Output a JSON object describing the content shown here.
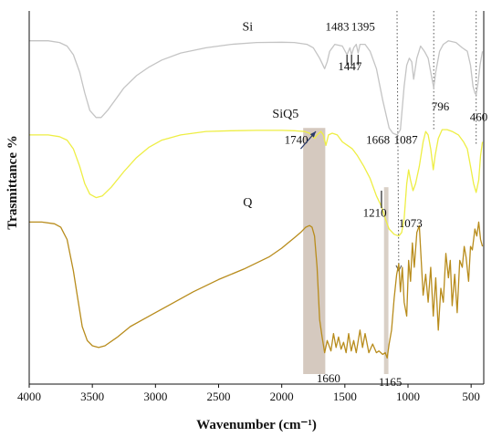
{
  "chart_data": {
    "type": "line",
    "xlabel": "Wavenumber (cm⁻¹)",
    "ylabel": "Trasmittance %",
    "xlim": [
      4000,
      400
    ],
    "x_reversed": true,
    "y_ticks_shown": false,
    "x_ticks": [
      "4000",
      "3500",
      "3000",
      "2500",
      "2000",
      "1500",
      "1000",
      "500"
    ],
    "x_tick_values": [
      4000,
      3500,
      3000,
      2500,
      2000,
      1500,
      1000,
      500
    ],
    "ylim": [
      0,
      100
    ],
    "grid": false,
    "series": [
      {
        "name": "Si",
        "color": "#c4c4c4",
        "label_at": [
          2270,
          96
        ],
        "points": [
          [
            4000,
            93
          ],
          [
            3850,
            93
          ],
          [
            3760,
            92.5
          ],
          [
            3700,
            91.5
          ],
          [
            3650,
            89
          ],
          [
            3600,
            84
          ],
          [
            3560,
            78
          ],
          [
            3520,
            73
          ],
          [
            3470,
            71
          ],
          [
            3430,
            71
          ],
          [
            3380,
            73
          ],
          [
            3320,
            76
          ],
          [
            3250,
            79.5
          ],
          [
            3150,
            83
          ],
          [
            3050,
            85.5
          ],
          [
            2950,
            87.5
          ],
          [
            2800,
            89.5
          ],
          [
            2600,
            91
          ],
          [
            2400,
            92
          ],
          [
            2200,
            92.5
          ],
          [
            2000,
            92.6
          ],
          [
            1900,
            92.5
          ],
          [
            1800,
            92
          ],
          [
            1750,
            91
          ],
          [
            1700,
            88
          ],
          [
            1660,
            85
          ],
          [
            1640,
            87
          ],
          [
            1620,
            90
          ],
          [
            1580,
            92
          ],
          [
            1520,
            91.5
          ],
          [
            1483,
            89
          ],
          [
            1460,
            91
          ],
          [
            1447,
            89
          ],
          [
            1430,
            91
          ],
          [
            1410,
            92
          ],
          [
            1395,
            89.5
          ],
          [
            1380,
            92
          ],
          [
            1340,
            92
          ],
          [
            1300,
            90
          ],
          [
            1250,
            85
          ],
          [
            1200,
            76
          ],
          [
            1150,
            68
          ],
          [
            1120,
            66.5
          ],
          [
            1087,
            66
          ],
          [
            1060,
            67.5
          ],
          [
            1030,
            80
          ],
          [
            1010,
            86
          ],
          [
            990,
            88
          ],
          [
            970,
            87
          ],
          [
            955,
            82
          ],
          [
            930,
            88
          ],
          [
            900,
            91.5
          ],
          [
            870,
            90
          ],
          [
            840,
            88
          ],
          [
            815,
            83
          ],
          [
            796,
            79.5
          ],
          [
            780,
            84
          ],
          [
            750,
            90
          ],
          [
            720,
            92
          ],
          [
            680,
            93
          ],
          [
            620,
            92.5
          ],
          [
            570,
            91
          ],
          [
            530,
            90
          ],
          [
            505,
            86
          ],
          [
            485,
            80
          ],
          [
            470,
            78
          ],
          [
            460,
            77.5
          ],
          [
            445,
            81
          ],
          [
            430,
            86
          ],
          [
            410,
            90
          ]
        ]
      },
      {
        "name": "SiQ5",
        "color": "#eeee44",
        "label_at": [
          1970,
          71
        ],
        "points": [
          [
            4000,
            66
          ],
          [
            3850,
            66
          ],
          [
            3760,
            65.5
          ],
          [
            3700,
            64.5
          ],
          [
            3650,
            62
          ],
          [
            3600,
            57
          ],
          [
            3560,
            52
          ],
          [
            3520,
            49
          ],
          [
            3470,
            48
          ],
          [
            3420,
            48.5
          ],
          [
            3350,
            51
          ],
          [
            3250,
            55.5
          ],
          [
            3150,
            59.5
          ],
          [
            3050,
            62.5
          ],
          [
            2950,
            64.5
          ],
          [
            2800,
            66
          ],
          [
            2600,
            67
          ],
          [
            2400,
            67.2
          ],
          [
            2200,
            67.3
          ],
          [
            2000,
            67.3
          ],
          [
            1900,
            67.2
          ],
          [
            1820,
            67
          ],
          [
            1780,
            66.5
          ],
          [
            1740,
            65
          ],
          [
            1720,
            66
          ],
          [
            1690,
            67
          ],
          [
            1670,
            66
          ],
          [
            1650,
            63
          ],
          [
            1630,
            66
          ],
          [
            1600,
            66.5
          ],
          [
            1560,
            66
          ],
          [
            1520,
            64
          ],
          [
            1480,
            63
          ],
          [
            1440,
            62
          ],
          [
            1400,
            60
          ],
          [
            1350,
            57
          ],
          [
            1300,
            53.5
          ],
          [
            1250,
            48.5
          ],
          [
            1210,
            45.5
          ],
          [
            1180,
            42
          ],
          [
            1150,
            39
          ],
          [
            1110,
            37.5
          ],
          [
            1073,
            37
          ],
          [
            1050,
            38
          ],
          [
            1030,
            42
          ],
          [
            1010,
            52
          ],
          [
            995,
            56
          ],
          [
            980,
            53
          ],
          [
            960,
            50
          ],
          [
            940,
            52
          ],
          [
            910,
            57
          ],
          [
            880,
            64
          ],
          [
            860,
            67
          ],
          [
            840,
            66
          ],
          [
            820,
            62
          ],
          [
            800,
            56
          ],
          [
            785,
            60
          ],
          [
            760,
            65
          ],
          [
            730,
            67.5
          ],
          [
            690,
            67.5
          ],
          [
            650,
            67
          ],
          [
            600,
            66
          ],
          [
            560,
            64
          ],
          [
            530,
            62
          ],
          [
            505,
            57
          ],
          [
            480,
            52
          ],
          [
            460,
            49.5
          ],
          [
            440,
            53
          ],
          [
            425,
            60
          ],
          [
            410,
            64
          ]
        ]
      },
      {
        "name": "Q",
        "color": "#b88c1c",
        "label_at": [
          2270,
          45.5
        ],
        "points": [
          [
            4000,
            41
          ],
          [
            3900,
            41
          ],
          [
            3800,
            40.5
          ],
          [
            3750,
            39.5
          ],
          [
            3700,
            36
          ],
          [
            3650,
            27
          ],
          [
            3620,
            20
          ],
          [
            3580,
            11
          ],
          [
            3540,
            7
          ],
          [
            3500,
            5.5
          ],
          [
            3450,
            5
          ],
          [
            3400,
            5.5
          ],
          [
            3300,
            8
          ],
          [
            3200,
            11
          ],
          [
            3100,
            13
          ],
          [
            3000,
            15
          ],
          [
            2900,
            17
          ],
          [
            2700,
            21
          ],
          [
            2500,
            24.5
          ],
          [
            2300,
            27.5
          ],
          [
            2100,
            31
          ],
          [
            2000,
            33.5
          ],
          [
            1950,
            35
          ],
          [
            1900,
            36.5
          ],
          [
            1850,
            38
          ],
          [
            1810,
            39.5
          ],
          [
            1780,
            40
          ],
          [
            1760,
            39.5
          ],
          [
            1740,
            37
          ],
          [
            1720,
            28
          ],
          [
            1700,
            13
          ],
          [
            1680,
            8
          ],
          [
            1660,
            3.5
          ],
          [
            1640,
            7
          ],
          [
            1610,
            4
          ],
          [
            1590,
            9
          ],
          [
            1570,
            5
          ],
          [
            1550,
            8
          ],
          [
            1530,
            4.5
          ],
          [
            1510,
            6.5
          ],
          [
            1490,
            3.5
          ],
          [
            1470,
            9
          ],
          [
            1450,
            4
          ],
          [
            1430,
            7
          ],
          [
            1410,
            3.5
          ],
          [
            1380,
            10
          ],
          [
            1360,
            5
          ],
          [
            1340,
            9
          ],
          [
            1310,
            3.5
          ],
          [
            1280,
            6
          ],
          [
            1250,
            3.5
          ],
          [
            1230,
            4
          ],
          [
            1200,
            3
          ],
          [
            1180,
            3.5
          ],
          [
            1165,
            2
          ],
          [
            1150,
            6
          ],
          [
            1130,
            10
          ],
          [
            1110,
            19
          ],
          [
            1090,
            26
          ],
          [
            1073,
            29
          ],
          [
            1060,
            21
          ],
          [
            1045,
            28
          ],
          [
            1030,
            18
          ],
          [
            1010,
            14
          ],
          [
            995,
            30
          ],
          [
            980,
            24
          ],
          [
            965,
            35
          ],
          [
            950,
            28
          ],
          [
            930,
            38
          ],
          [
            910,
            40
          ],
          [
            895,
            30
          ],
          [
            880,
            20
          ],
          [
            860,
            26
          ],
          [
            840,
            18
          ],
          [
            820,
            28
          ],
          [
            800,
            14
          ],
          [
            780,
            25
          ],
          [
            760,
            10
          ],
          [
            740,
            22
          ],
          [
            720,
            18
          ],
          [
            700,
            32
          ],
          [
            680,
            25
          ],
          [
            665,
            30
          ],
          [
            650,
            17
          ],
          [
            630,
            26
          ],
          [
            610,
            15
          ],
          [
            590,
            30
          ],
          [
            570,
            28
          ],
          [
            555,
            34
          ],
          [
            540,
            31
          ],
          [
            520,
            24
          ],
          [
            505,
            34
          ],
          [
            490,
            33
          ],
          [
            470,
            39
          ],
          [
            455,
            37
          ],
          [
            440,
            41
          ],
          [
            425,
            36
          ],
          [
            410,
            34
          ]
        ]
      }
    ],
    "peak_labels": [
      {
        "text": "1483",
        "x": 1560,
        "y": 96
      },
      {
        "text": "1395",
        "x": 1355,
        "y": 96
      },
      {
        "text": "1447",
        "x": 1460,
        "y": 84.5
      },
      {
        "text": "796",
        "x": 743,
        "y": 73
      },
      {
        "text": "460",
        "x": 440,
        "y": 70
      },
      {
        "text": "1087",
        "x": 1017,
        "y": 63.5
      },
      {
        "text": "1668",
        "x": 1238,
        "y": 63.5
      },
      {
        "text": "1740",
        "x": 1885,
        "y": 63.5
      },
      {
        "text": "1210",
        "x": 1263,
        "y": 42.5
      },
      {
        "text": "1073",
        "x": 980,
        "y": 39.5
      },
      {
        "text": "1660",
        "x": 1630,
        "y": -5
      },
      {
        "text": "1165",
        "x": 1140,
        "y": -6
      }
    ],
    "peak_markers": [
      {
        "x": 1483,
        "y1": 89,
        "y2": 86
      },
      {
        "x": 1447,
        "y1": 89,
        "y2": 86
      },
      {
        "x": 1395,
        "y1": 89,
        "y2": 86
      },
      {
        "x": 1210,
        "y1": 50,
        "y2": 45
      }
    ],
    "highlight_bands": [
      {
        "x_from": 1830,
        "x_to": 1655,
        "y_to": 68,
        "color": "#cec0b4"
      },
      {
        "x_from": 1190,
        "x_to": 1155,
        "y_to": 51,
        "color": "#d2c8bc"
      }
    ],
    "dotted_guides": [
      {
        "x_from": 1087,
        "y_from": 100,
        "x_to": 1073,
        "y_to": 27
      },
      {
        "x_from": 796,
        "y_from": 100,
        "x_to": 796,
        "y_to": 67
      },
      {
        "x_from": 460,
        "y_from": 100,
        "x_to": 460,
        "y_to": 63
      }
    ],
    "arrow": {
      "x_from": 1850,
      "y_from": 62,
      "x_to": 1730,
      "y_to": 67
    }
  }
}
